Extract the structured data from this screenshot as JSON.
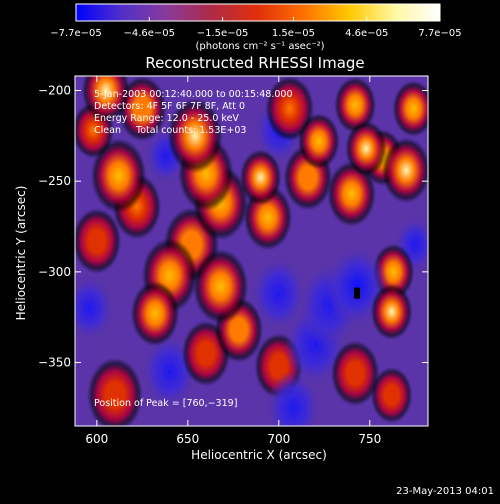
{
  "chart_data": {
    "type": "heatmap",
    "title": "Reconstructed RHESSI Image",
    "xlabel": "Heliocentric X (arcsec)",
    "ylabel": "Heliocentric Y (arcsec)",
    "xlim": [
      588,
      782
    ],
    "ylim": [
      -385,
      -192
    ],
    "x_ticks": [
      {
        "value": 600,
        "label": "600"
      },
      {
        "value": 650,
        "label": "650"
      },
      {
        "value": 700,
        "label": "700"
      },
      {
        "value": 750,
        "label": "750"
      }
    ],
    "y_ticks": [
      {
        "value": -200,
        "label": "−200"
      },
      {
        "value": -250,
        "label": "−250"
      },
      {
        "value": -300,
        "label": "−300"
      },
      {
        "value": -350,
        "label": "−350"
      }
    ],
    "colorbar": {
      "range": [
        -7.7e-05,
        7.7e-05
      ],
      "tick_values": [
        -7.7e-05,
        -4.6e-05,
        -1.5e-05,
        1.5e-05,
        4.6e-05,
        7.7e-05
      ],
      "tick_labels": [
        "−7.7e−05",
        "−4.6e−05",
        "−1.5e−05",
        "1.5e−05",
        "4.6e−05",
        "7.7e−05"
      ],
      "units": "(photons cm⁻² s⁻¹ asec⁻²)",
      "colors": [
        "#0000ff",
        "#5030c8",
        "#8a3a9a",
        "#b02a44",
        "#e0300a",
        "#ff7000",
        "#ffc800",
        "#fff8a0",
        "#ffffff"
      ]
    },
    "annotations": [
      "5-Jan-2003 00:12:40.000 to 00:15:48.000",
      "Detectors: 4F 5F 6F 7F 8F, Att 0",
      "Energy Range: 12.0 - 25.0 keV",
      "Clean     Total counts: 1.53E+03"
    ],
    "peak_label": "Position of Peak = [760,−319]",
    "peak": {
      "x": 760,
      "y": -319
    },
    "min_marker": {
      "x": 743,
      "y": -312
    },
    "sources": [
      {
        "x": 605,
        "y": -200,
        "v": 0.95,
        "s": 7
      },
      {
        "x": 598,
        "y": -222,
        "v": 0.6,
        "s": 6
      },
      {
        "x": 625,
        "y": -210,
        "v": 0.75,
        "s": 7
      },
      {
        "x": 612,
        "y": -247,
        "v": 0.8,
        "s": 8
      },
      {
        "x": 622,
        "y": -264,
        "v": 0.6,
        "s": 7
      },
      {
        "x": 600,
        "y": -283,
        "v": 0.4,
        "s": 7
      },
      {
        "x": 654,
        "y": -225,
        "v": 0.95,
        "s": 8
      },
      {
        "x": 660,
        "y": -246,
        "v": 0.85,
        "s": 8
      },
      {
        "x": 668,
        "y": -262,
        "v": 0.8,
        "s": 8
      },
      {
        "x": 652,
        "y": -285,
        "v": 0.75,
        "s": 8
      },
      {
        "x": 640,
        "y": -302,
        "v": 0.8,
        "s": 8
      },
      {
        "x": 632,
        "y": -323,
        "v": 0.9,
        "s": 7
      },
      {
        "x": 668,
        "y": -308,
        "v": 0.8,
        "s": 8
      },
      {
        "x": 678,
        "y": -332,
        "v": 0.7,
        "s": 7
      },
      {
        "x": 660,
        "y": -345,
        "v": 0.5,
        "s": 7
      },
      {
        "x": 690,
        "y": -248,
        "v": 0.95,
        "s": 6
      },
      {
        "x": 694,
        "y": -270,
        "v": 0.9,
        "s": 7
      },
      {
        "x": 706,
        "y": -210,
        "v": 0.6,
        "s": 7
      },
      {
        "x": 716,
        "y": -248,
        "v": 0.75,
        "s": 7
      },
      {
        "x": 722,
        "y": -228,
        "v": 0.8,
        "s": 6
      },
      {
        "x": 742,
        "y": -208,
        "v": 0.9,
        "s": 6
      },
      {
        "x": 748,
        "y": -232,
        "v": 0.95,
        "s": 6
      },
      {
        "x": 740,
        "y": -257,
        "v": 0.9,
        "s": 7
      },
      {
        "x": 757,
        "y": -237,
        "v": 0.8,
        "s": 6
      },
      {
        "x": 770,
        "y": -244,
        "v": 1.0,
        "s": 7
      },
      {
        "x": 774,
        "y": -210,
        "v": 0.8,
        "s": 6
      },
      {
        "x": 763,
        "y": -300,
        "v": 0.8,
        "s": 6
      },
      {
        "x": 762,
        "y": -322,
        "v": 1.0,
        "s": 6
      },
      {
        "x": 742,
        "y": -356,
        "v": 0.5,
        "s": 7
      },
      {
        "x": 762,
        "y": -368,
        "v": 0.55,
        "s": 6
      },
      {
        "x": 610,
        "y": -368,
        "v": 0.35,
        "s": 8
      },
      {
        "x": 700,
        "y": -352,
        "v": 0.3,
        "s": 7
      },
      {
        "x": 743,
        "y": -308,
        "v": -0.9,
        "s": 9
      },
      {
        "x": 728,
        "y": -318,
        "v": -0.6,
        "s": 9
      },
      {
        "x": 700,
        "y": -312,
        "v": -0.5,
        "s": 8
      },
      {
        "x": 720,
        "y": -340,
        "v": -0.45,
        "s": 9
      },
      {
        "x": 700,
        "y": -222,
        "v": -0.5,
        "s": 7
      },
      {
        "x": 708,
        "y": -375,
        "v": -0.35,
        "s": 8
      },
      {
        "x": 638,
        "y": -236,
        "v": -0.4,
        "s": 6
      },
      {
        "x": 640,
        "y": -355,
        "v": -0.3,
        "s": 8
      },
      {
        "x": 775,
        "y": -285,
        "v": -0.3,
        "s": 6
      },
      {
        "x": 596,
        "y": -320,
        "v": -0.25,
        "s": 7
      }
    ]
  },
  "timestamp": "23-May-2013 04:01"
}
